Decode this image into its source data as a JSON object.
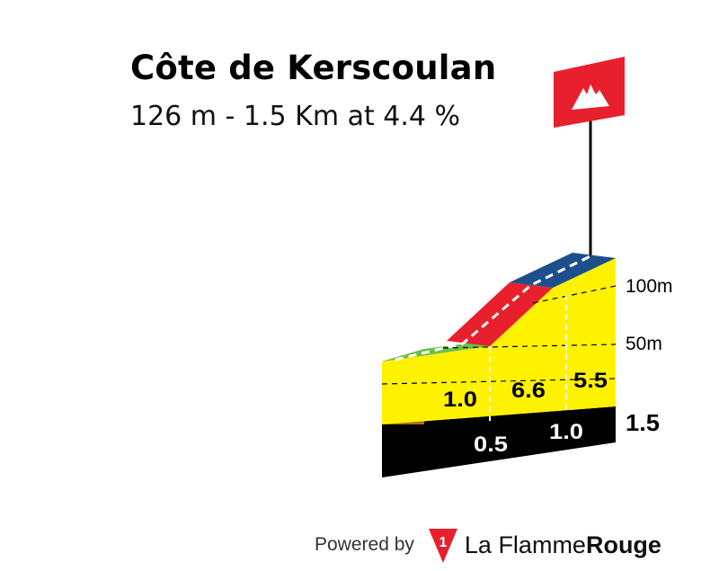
{
  "title": "Côte de Kerscoulan",
  "subtitle": "126 m - 1.5 Km at 4.4 %",
  "footer": {
    "powered_by": "Powered by",
    "brand_light": "La Flamme",
    "brand_bold": "Rouge"
  },
  "colors": {
    "flag": "#e8202d",
    "yellow": "#fff200",
    "green": "#6cc04a",
    "red": "#e8202d",
    "blue": "#1d4f8c",
    "side": "#a3761b",
    "base": "#000000"
  },
  "chart_data": {
    "type": "area",
    "title": "Côte de Kerscoulan",
    "subtitle": "126 m - 1.5 Km at 4.4 %",
    "total_distance_km": "1.5",
    "elevation_ticks": [
      "50m",
      "100m"
    ],
    "segments": [
      {
        "length_km": "0.5",
        "gradient": "1.0",
        "color": "green"
      },
      {
        "length_km": "0.5",
        "gradient": "6.6",
        "color": "red"
      },
      {
        "length_km": "0.5",
        "gradient": "5.5",
        "color": "blue"
      }
    ],
    "km_markers": [
      "0.5",
      "1.0"
    ],
    "icon": "mountain-flag-icon"
  }
}
